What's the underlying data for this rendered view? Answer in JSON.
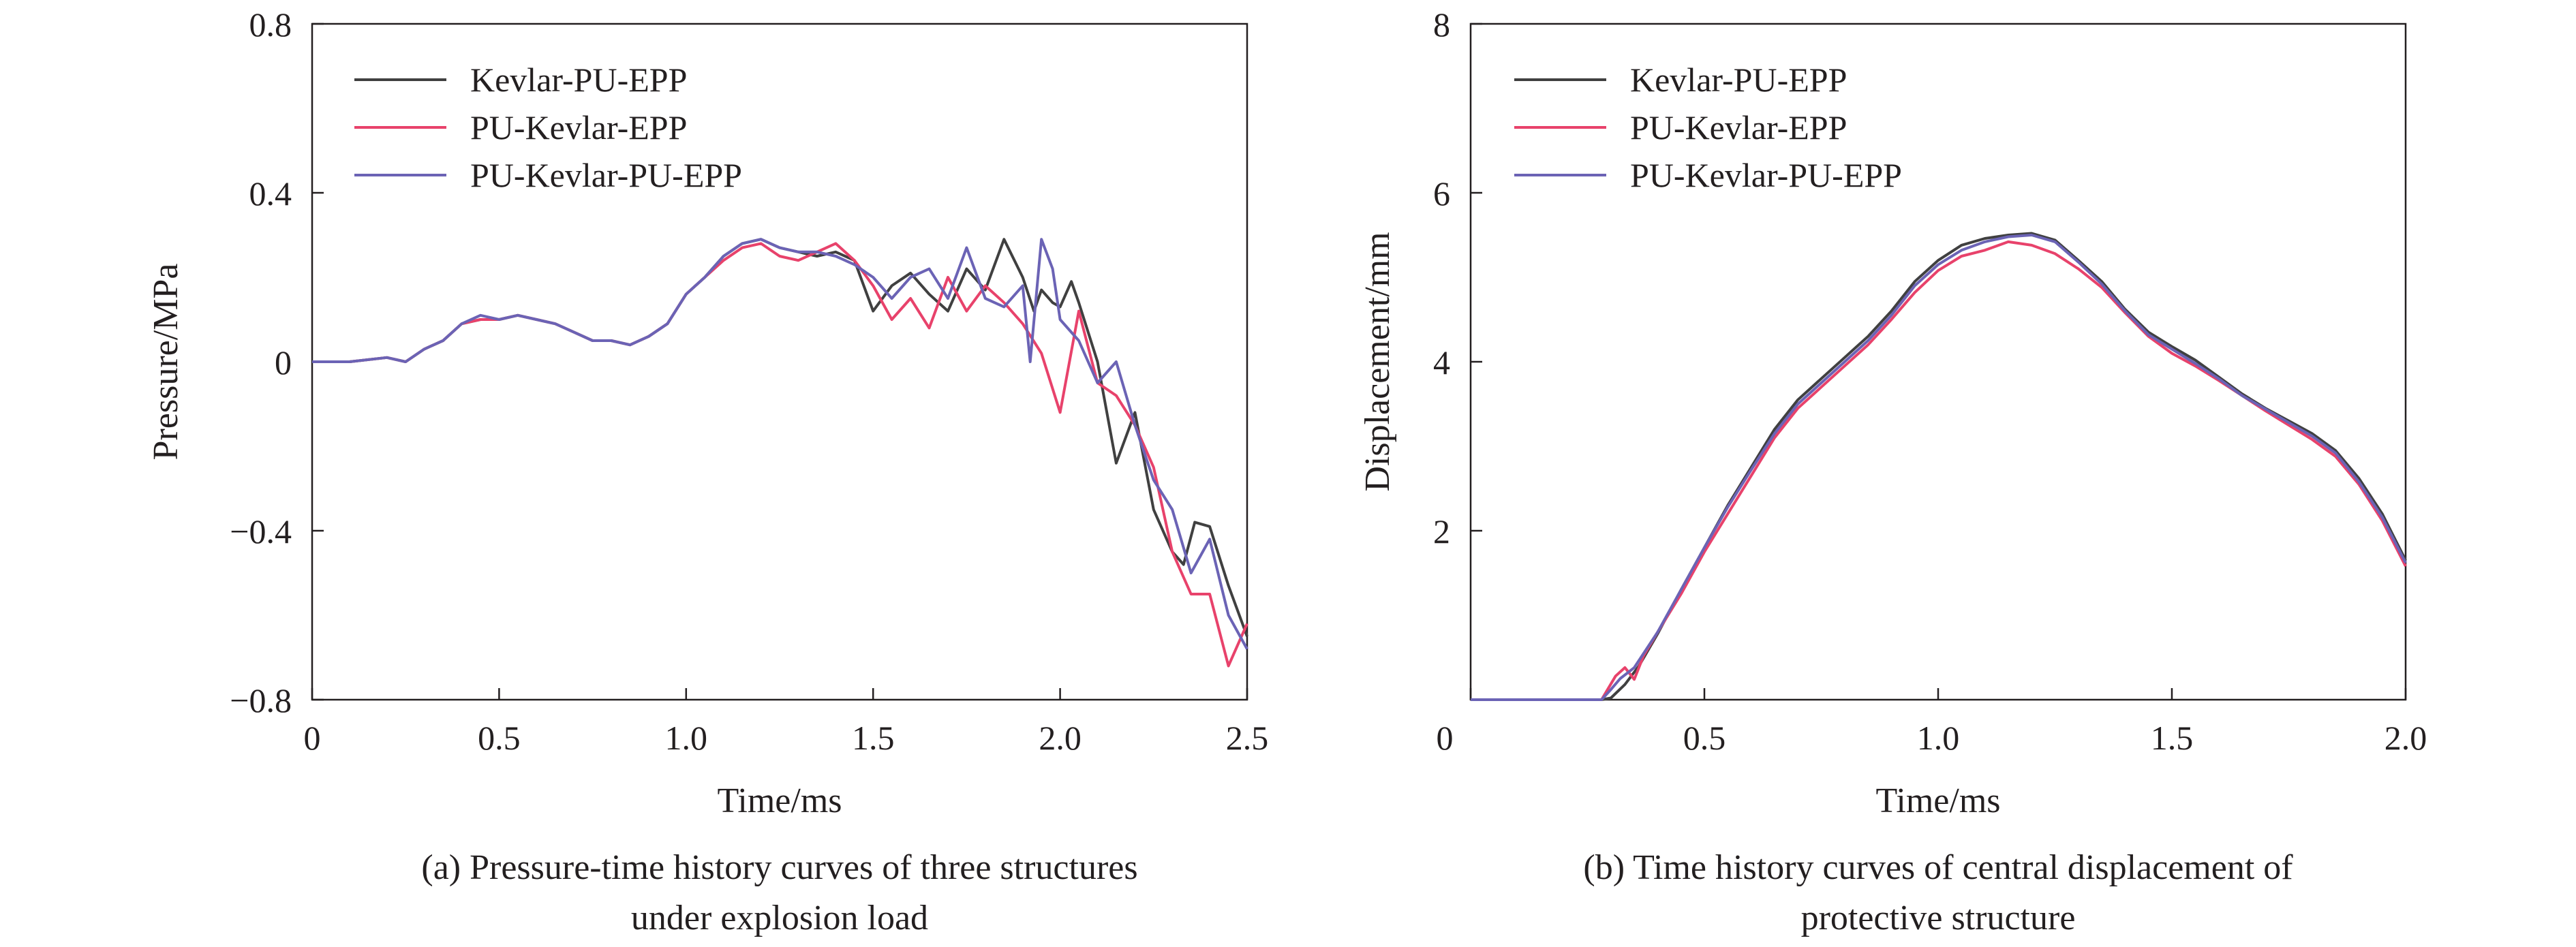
{
  "colors": {
    "Kevlar-PU-EPP": "#404040",
    "PU-Kevlar-EPP": "#e8426b",
    "PU-Kevlar-PU-EPP": "#6b63b5",
    "axis": "#231f20"
  },
  "chart_data": [
    {
      "type": "line",
      "xlabel": "Time/ms",
      "ylabel": "Pressure/MPa",
      "xlim": [
        0,
        2.5
      ],
      "ylim": [
        -0.8,
        0.8
      ],
      "xticks": [
        "0",
        "0.5",
        "1.0",
        "1.5",
        "2.0",
        "2.5"
      ],
      "yticks": [
        "0.8",
        "0.4",
        "0",
        "−0.4",
        "−0.8"
      ],
      "legend_position": "top-left",
      "grid": false,
      "caption_lines": [
        "(a) Pressure-time history curves of three structures",
        "under explosion load"
      ],
      "series": [
        {
          "name": "Kevlar-PU-EPP",
          "color": "#404040",
          "x": [
            0,
            0.1,
            0.2,
            0.25,
            0.3,
            0.35,
            0.4,
            0.45,
            0.5,
            0.55,
            0.6,
            0.65,
            0.7,
            0.75,
            0.8,
            0.85,
            0.9,
            0.95,
            1.0,
            1.05,
            1.1,
            1.15,
            1.2,
            1.25,
            1.3,
            1.35,
            1.4,
            1.45,
            1.5,
            1.55,
            1.6,
            1.65,
            1.7,
            1.75,
            1.8,
            1.85,
            1.9,
            1.93,
            1.95,
            1.98,
            2.0,
            2.03,
            2.05,
            2.1,
            2.15,
            2.2,
            2.25,
            2.3,
            2.33,
            2.36,
            2.4,
            2.45,
            2.5
          ],
          "y": [
            0,
            0,
            0.01,
            0.0,
            0.03,
            0.05,
            0.09,
            0.1,
            0.1,
            0.11,
            0.1,
            0.09,
            0.07,
            0.05,
            0.05,
            0.04,
            0.06,
            0.09,
            0.16,
            0.2,
            0.25,
            0.28,
            0.29,
            0.27,
            0.26,
            0.25,
            0.26,
            0.24,
            0.12,
            0.18,
            0.21,
            0.16,
            0.12,
            0.22,
            0.17,
            0.29,
            0.2,
            0.12,
            0.17,
            0.14,
            0.13,
            0.19,
            0.14,
            0.0,
            -0.24,
            -0.12,
            -0.35,
            -0.45,
            -0.48,
            -0.38,
            -0.39,
            -0.53,
            -0.65
          ]
        },
        {
          "name": "PU-Kevlar-EPP",
          "color": "#e8426b",
          "x": [
            0,
            0.1,
            0.2,
            0.25,
            0.3,
            0.35,
            0.4,
            0.45,
            0.5,
            0.55,
            0.6,
            0.65,
            0.7,
            0.75,
            0.8,
            0.85,
            0.9,
            0.95,
            1.0,
            1.05,
            1.1,
            1.15,
            1.2,
            1.25,
            1.3,
            1.35,
            1.4,
            1.45,
            1.5,
            1.55,
            1.6,
            1.65,
            1.7,
            1.75,
            1.8,
            1.85,
            1.9,
            1.95,
            2.0,
            2.05,
            2.1,
            2.15,
            2.2,
            2.25,
            2.3,
            2.35,
            2.4,
            2.45,
            2.5
          ],
          "y": [
            0,
            0,
            0.01,
            0.0,
            0.03,
            0.05,
            0.09,
            0.1,
            0.1,
            0.11,
            0.1,
            0.09,
            0.07,
            0.05,
            0.05,
            0.04,
            0.06,
            0.09,
            0.16,
            0.2,
            0.24,
            0.27,
            0.28,
            0.25,
            0.24,
            0.26,
            0.28,
            0.24,
            0.18,
            0.1,
            0.15,
            0.08,
            0.2,
            0.12,
            0.18,
            0.14,
            0.09,
            0.02,
            -0.12,
            0.12,
            -0.05,
            -0.08,
            -0.15,
            -0.25,
            -0.45,
            -0.55,
            -0.55,
            -0.72,
            -0.62
          ]
        },
        {
          "name": "PU-Kevlar-PU-EPP",
          "color": "#6b63b5",
          "x": [
            0,
            0.1,
            0.2,
            0.25,
            0.3,
            0.35,
            0.4,
            0.45,
            0.5,
            0.55,
            0.6,
            0.65,
            0.7,
            0.75,
            0.8,
            0.85,
            0.9,
            0.95,
            1.0,
            1.05,
            1.1,
            1.15,
            1.2,
            1.25,
            1.3,
            1.35,
            1.4,
            1.45,
            1.5,
            1.55,
            1.6,
            1.65,
            1.7,
            1.75,
            1.8,
            1.85,
            1.9,
            1.92,
            1.95,
            1.98,
            2.0,
            2.05,
            2.1,
            2.15,
            2.2,
            2.25,
            2.3,
            2.35,
            2.4,
            2.45,
            2.5
          ],
          "y": [
            0,
            0,
            0.01,
            0.0,
            0.03,
            0.05,
            0.09,
            0.11,
            0.1,
            0.11,
            0.1,
            0.09,
            0.07,
            0.05,
            0.05,
            0.04,
            0.06,
            0.09,
            0.16,
            0.2,
            0.25,
            0.28,
            0.29,
            0.27,
            0.26,
            0.26,
            0.25,
            0.23,
            0.2,
            0.15,
            0.2,
            0.22,
            0.15,
            0.27,
            0.15,
            0.13,
            0.18,
            0.0,
            0.29,
            0.22,
            0.1,
            0.05,
            -0.05,
            0.0,
            -0.15,
            -0.28,
            -0.35,
            -0.5,
            -0.42,
            -0.6,
            -0.68
          ]
        }
      ]
    },
    {
      "type": "line",
      "xlabel": "Time/ms",
      "ylabel": "Displacement/mm",
      "xlim": [
        0,
        2.0
      ],
      "ylim": [
        0,
        8
      ],
      "xticks": [
        "0",
        "0.5",
        "1.0",
        "1.5",
        "2.0"
      ],
      "yticks": [
        "8",
        "6",
        "4",
        "2"
      ],
      "legend_position": "top-left",
      "grid": false,
      "caption_lines": [
        "(b) Time history curves of central displacement of",
        "protective structure"
      ],
      "series": [
        {
          "name": "Kevlar-PU-EPP",
          "color": "#404040",
          "x": [
            0,
            0.28,
            0.3,
            0.33,
            0.36,
            0.4,
            0.45,
            0.5,
            0.55,
            0.6,
            0.65,
            0.7,
            0.75,
            0.8,
            0.85,
            0.9,
            0.95,
            1.0,
            1.05,
            1.1,
            1.15,
            1.2,
            1.25,
            1.3,
            1.35,
            1.4,
            1.45,
            1.5,
            1.55,
            1.6,
            1.65,
            1.7,
            1.75,
            1.8,
            1.85,
            1.9,
            1.95,
            2.0
          ],
          "y": [
            0,
            0,
            0.02,
            0.18,
            0.4,
            0.78,
            1.3,
            1.8,
            2.3,
            2.75,
            3.2,
            3.55,
            3.8,
            4.05,
            4.3,
            4.6,
            4.95,
            5.2,
            5.38,
            5.46,
            5.5,
            5.52,
            5.44,
            5.2,
            4.95,
            4.62,
            4.35,
            4.18,
            4.02,
            3.82,
            3.62,
            3.45,
            3.3,
            3.15,
            2.95,
            2.62,
            2.2,
            1.65
          ]
        },
        {
          "name": "PU-Kevlar-EPP",
          "color": "#e8426b",
          "x": [
            0,
            0.28,
            0.31,
            0.33,
            0.35,
            0.37,
            0.4,
            0.45,
            0.5,
            0.55,
            0.6,
            0.65,
            0.7,
            0.75,
            0.8,
            0.85,
            0.9,
            0.95,
            1.0,
            1.05,
            1.1,
            1.15,
            1.2,
            1.25,
            1.3,
            1.35,
            1.4,
            1.45,
            1.5,
            1.55,
            1.6,
            1.65,
            1.7,
            1.75,
            1.8,
            1.85,
            1.9,
            1.95,
            2.0
          ],
          "y": [
            0,
            0,
            0.28,
            0.38,
            0.24,
            0.52,
            0.8,
            1.25,
            1.75,
            2.2,
            2.65,
            3.1,
            3.45,
            3.7,
            3.95,
            4.2,
            4.5,
            4.82,
            5.08,
            5.25,
            5.32,
            5.42,
            5.38,
            5.28,
            5.1,
            4.88,
            4.58,
            4.3,
            4.1,
            3.95,
            3.78,
            3.6,
            3.42,
            3.25,
            3.08,
            2.88,
            2.55,
            2.12,
            1.58
          ]
        },
        {
          "name": "PU-Kevlar-PU-EPP",
          "color": "#6b63b5",
          "x": [
            0,
            0.28,
            0.3,
            0.32,
            0.35,
            0.4,
            0.45,
            0.5,
            0.55,
            0.6,
            0.65,
            0.7,
            0.75,
            0.8,
            0.85,
            0.9,
            0.95,
            1.0,
            1.05,
            1.1,
            1.15,
            1.2,
            1.25,
            1.3,
            1.35,
            1.4,
            1.45,
            1.5,
            1.55,
            1.6,
            1.65,
            1.7,
            1.75,
            1.8,
            1.85,
            1.9,
            1.95,
            2.0
          ],
          "y": [
            0,
            0,
            0.12,
            0.25,
            0.38,
            0.8,
            1.3,
            1.8,
            2.28,
            2.72,
            3.15,
            3.5,
            3.75,
            4.0,
            4.25,
            4.55,
            4.9,
            5.15,
            5.32,
            5.42,
            5.48,
            5.5,
            5.42,
            5.18,
            4.92,
            4.6,
            4.32,
            4.15,
            3.98,
            3.8,
            3.6,
            3.44,
            3.28,
            3.12,
            2.92,
            2.58,
            2.16,
            1.62
          ]
        }
      ]
    }
  ]
}
